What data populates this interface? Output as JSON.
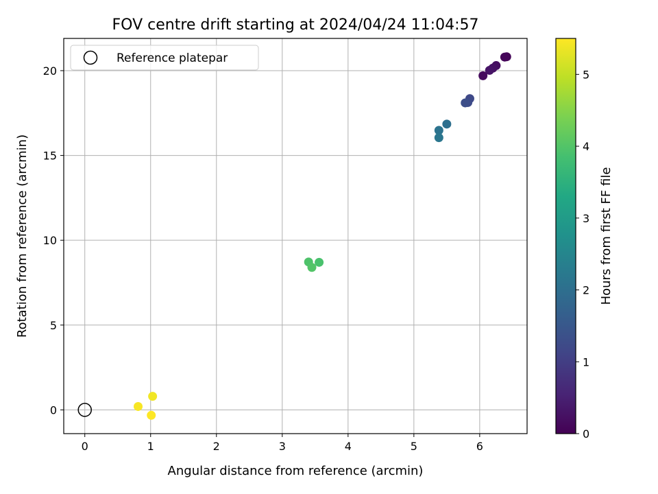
{
  "chart_data": {
    "type": "scatter",
    "title": "FOV centre drift starting at 2024/04/24 11:04:57",
    "xlabel": "Angular distance from reference (arcmin)",
    "ylabel": "Rotation from reference (arcmin)",
    "xlim": [
      -0.32,
      6.72
    ],
    "ylim": [
      -1.4,
      21.9
    ],
    "xticks": [
      0,
      1,
      2,
      3,
      4,
      5,
      6
    ],
    "yticks": [
      0,
      5,
      10,
      15,
      20
    ],
    "grid": true,
    "legend": {
      "location": "upper-left",
      "entries": [
        "Reference platepar"
      ]
    },
    "reference_point": {
      "x": 0,
      "y": 0,
      "label": "Reference platepar",
      "marker": "hollow-circle"
    },
    "colorbar": {
      "label": "Hours from first FF file",
      "range": [
        0,
        5.5
      ],
      "ticks": [
        0,
        1,
        2,
        3,
        4,
        5
      ],
      "colormap": "viridis"
    },
    "points": [
      {
        "x": 6.41,
        "y": 20.82,
        "hours": 0.05
      },
      {
        "x": 6.38,
        "y": 20.8,
        "hours": 0.08
      },
      {
        "x": 6.25,
        "y": 20.3,
        "hours": 0.2
      },
      {
        "x": 6.2,
        "y": 20.15,
        "hours": 0.25
      },
      {
        "x": 6.15,
        "y": 20.02,
        "hours": 0.3
      },
      {
        "x": 6.05,
        "y": 19.7,
        "hours": 0.15
      },
      {
        "x": 5.85,
        "y": 18.35,
        "hours": 1.2
      },
      {
        "x": 5.82,
        "y": 18.12,
        "hours": 1.25
      },
      {
        "x": 5.78,
        "y": 18.1,
        "hours": 1.3
      },
      {
        "x": 5.5,
        "y": 16.85,
        "hours": 2.0
      },
      {
        "x": 5.38,
        "y": 16.48,
        "hours": 2.1
      },
      {
        "x": 5.38,
        "y": 16.05,
        "hours": 2.15
      },
      {
        "x": 3.56,
        "y": 8.7,
        "hours": 3.9
      },
      {
        "x": 3.4,
        "y": 8.72,
        "hours": 3.95
      },
      {
        "x": 3.45,
        "y": 8.4,
        "hours": 4.0
      },
      {
        "x": 1.03,
        "y": 0.8,
        "hours": 5.4
      },
      {
        "x": 0.81,
        "y": 0.2,
        "hours": 5.45
      },
      {
        "x": 1.01,
        "y": -0.32,
        "hours": 5.5
      }
    ]
  }
}
